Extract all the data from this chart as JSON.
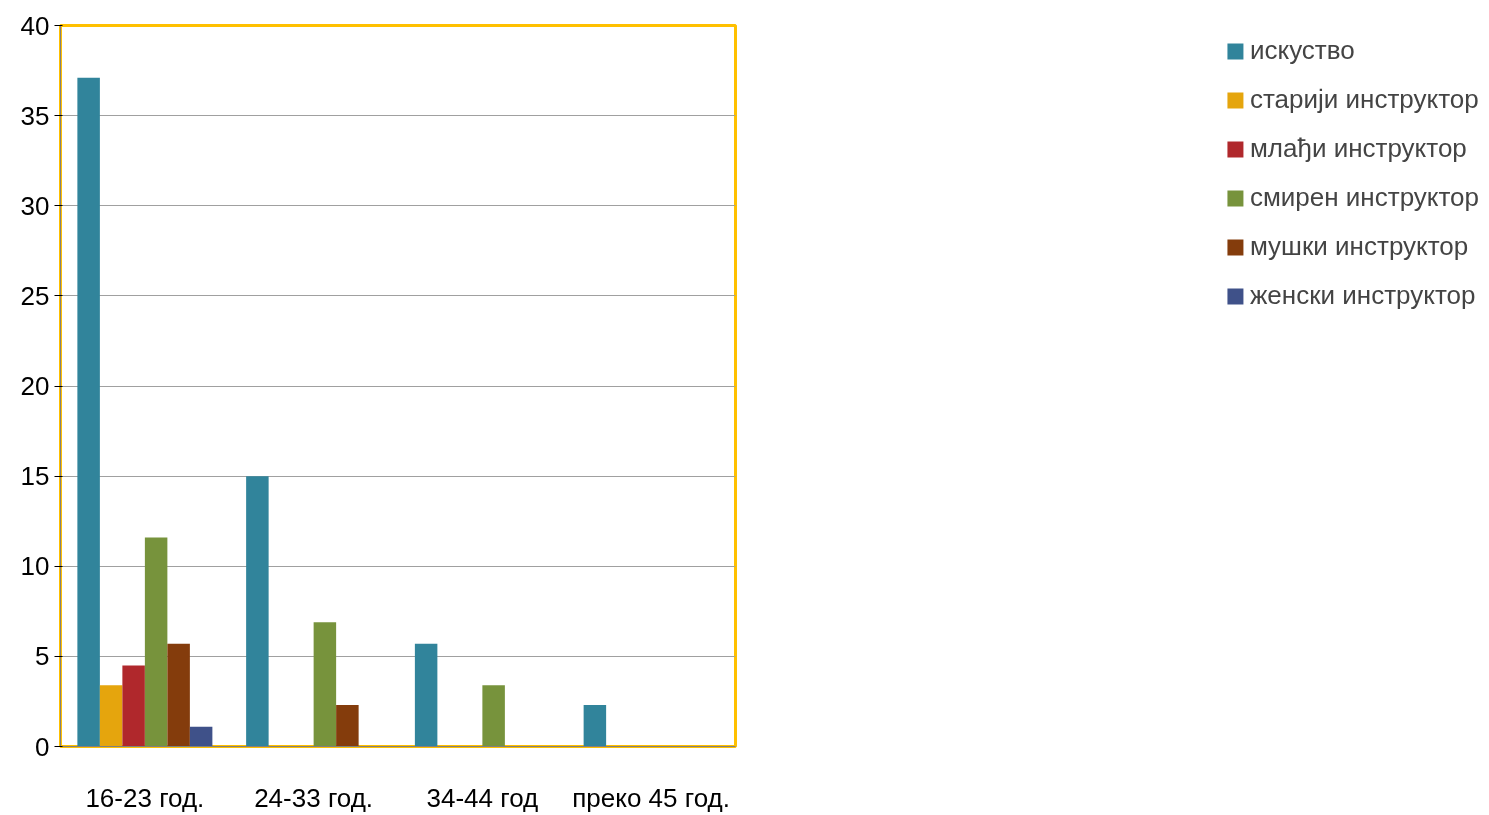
{
  "chart_data": {
    "type": "bar",
    "categories": [
      "16-23 год.",
      "24-33 год.",
      "34-44 год",
      "преко 45 год."
    ],
    "series": [
      {
        "name": "искуство",
        "color": "#31849b",
        "values": [
          37.1,
          15,
          5.7,
          2.3
        ]
      },
      {
        "name": "старији инструктор",
        "color": "#e5a50d",
        "values": [
          3.4,
          0,
          0,
          0
        ]
      },
      {
        "name": "млађи инструктор",
        "color": "#b0282c",
        "values": [
          4.5,
          0,
          0,
          0
        ]
      },
      {
        "name": "смирен инструктор",
        "color": "#77933c",
        "values": [
          11.6,
          6.9,
          3.4,
          0
        ]
      },
      {
        "name": "мушки инструктор",
        "color": "#843c0c",
        "values": [
          5.7,
          2.3,
          0,
          0
        ]
      },
      {
        "name": "женски инструктор",
        "color": "#3f5189",
        "values": [
          1.1,
          0,
          0,
          0
        ]
      }
    ],
    "ylim": [
      0,
      40
    ],
    "yticks": [
      0,
      5,
      10,
      15,
      20,
      25,
      30,
      35,
      40
    ],
    "grid": "y",
    "legend": "right"
  }
}
